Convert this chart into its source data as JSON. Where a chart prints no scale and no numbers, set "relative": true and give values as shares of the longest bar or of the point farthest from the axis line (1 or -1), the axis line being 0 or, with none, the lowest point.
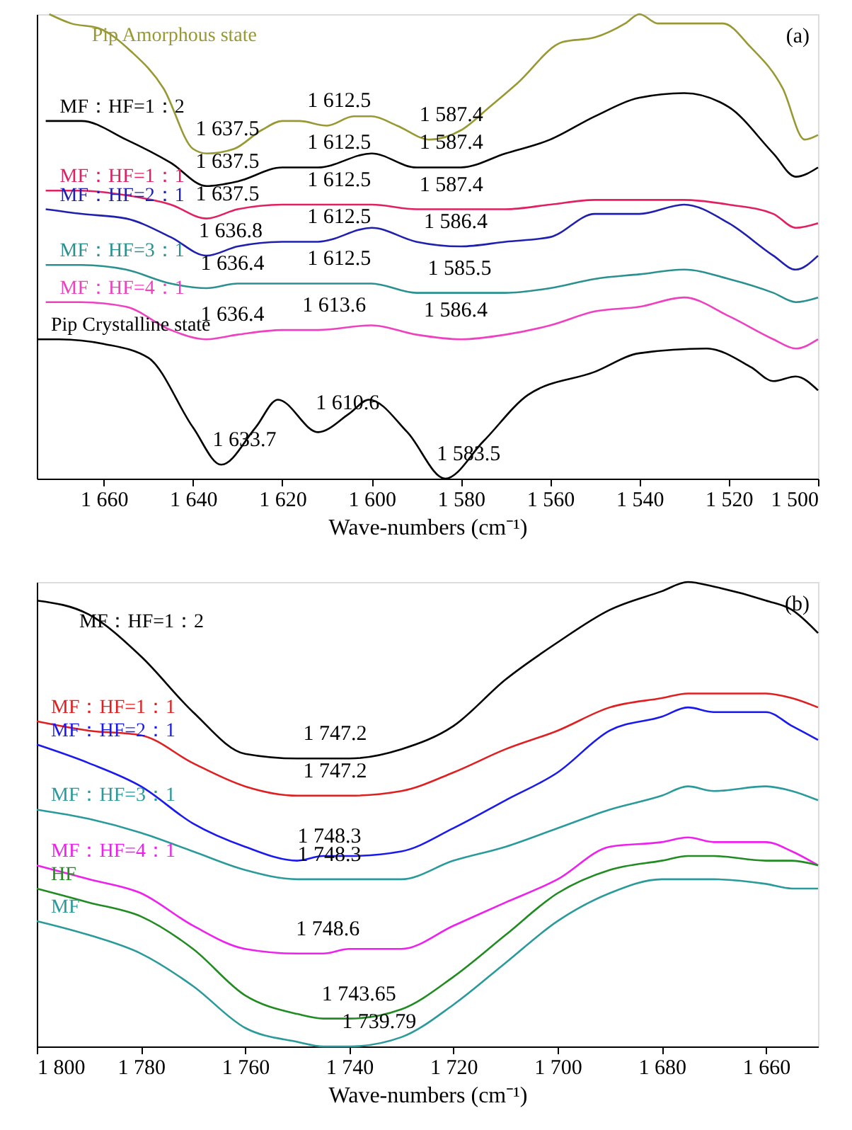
{
  "chart_data": [
    {
      "type": "line",
      "relative": true,
      "tick_labels": "x",
      "xlabel": "Wave-numbers (cm⁻¹)",
      "xlim": [
        1675,
        1500
      ],
      "xticks": [
        {
          "value": 1660,
          "label": "1 660"
        },
        {
          "value": 1640,
          "label": "1 640"
        },
        {
          "value": 1620,
          "label": "1 620"
        },
        {
          "value": 1600,
          "label": "1 600"
        },
        {
          "value": 1580,
          "label": "1 580"
        },
        {
          "value": 1560,
          "label": "1 560"
        },
        {
          "value": 1540,
          "label": "1 540"
        },
        {
          "value": 1520,
          "label": "1 520"
        },
        {
          "value": 1500,
          "label": "1 500"
        }
      ],
      "x": [
        1673,
        1665,
        1655,
        1645,
        1637,
        1630,
        1620,
        1612,
        1600,
        1590,
        1580,
        1570,
        1560,
        1550,
        1540,
        1530,
        1520,
        1510,
        1505,
        1500
      ],
      "series": [
        {
          "name": "Pip Amorphous state",
          "color": "#999933",
          "x": [
            1672.2,
            1667.3,
            1661.2,
            1653.9,
            1646.6,
            1640,
            1636.9,
            1630.8,
            1624.7,
            1620,
            1616.2,
            1610,
            1604,
            1600,
            1594.3,
            1587,
            1580,
            1573.6,
            1567.5,
            1557.2,
            1550,
            1543.2,
            1540,
            1535.9,
            1530,
            1521.3,
            1515.2,
            1507.9,
            1503,
            1500
          ],
          "values": [
            1.0,
            0.98,
            0.97,
            0.92,
            0.84,
            0.71,
            0.7,
            0.71,
            0.75,
            0.77,
            0.77,
            0.76,
            0.78,
            0.78,
            0.76,
            0.73,
            0.75,
            0.8,
            0.85,
            0.94,
            0.95,
            0.98,
            1.0,
            0.98,
            0.98,
            0.98,
            0.93,
            0.84,
            0.73,
            0.74
          ]
        },
        {
          "name": "MF：HF=1：2",
          "color": "#000000",
          "values": [
            0.77,
            0.77,
            0.73,
            0.68,
            0.63,
            0.64,
            0.67,
            0.67,
            0.7,
            0.67,
            0.67,
            0.7,
            0.73,
            0.78,
            0.82,
            0.83,
            0.8,
            0.7,
            0.65,
            0.67
          ]
        },
        {
          "name": "MF：HF=1：1",
          "color": "#e02060",
          "values": [
            0.62,
            0.62,
            0.61,
            0.59,
            0.56,
            0.58,
            0.59,
            0.59,
            0.59,
            0.58,
            0.58,
            0.58,
            0.59,
            0.6,
            0.6,
            0.6,
            0.59,
            0.57,
            0.54,
            0.55
          ]
        },
        {
          "name": "MF：HF=2：1",
          "color": "#2020b0",
          "values": [
            0.58,
            0.57,
            0.56,
            0.52,
            0.48,
            0.5,
            0.51,
            0.51,
            0.54,
            0.51,
            0.5,
            0.51,
            0.52,
            0.57,
            0.57,
            0.59,
            0.55,
            0.48,
            0.45,
            0.48
          ]
        },
        {
          "name": "MF：HF=3：1",
          "color": "#2a9090",
          "values": [
            0.46,
            0.46,
            0.45,
            0.42,
            0.41,
            0.42,
            0.42,
            0.42,
            0.42,
            0.4,
            0.4,
            0.4,
            0.41,
            0.43,
            0.44,
            0.45,
            0.43,
            0.4,
            0.38,
            0.39
          ]
        },
        {
          "name": "MF：HF=4：1",
          "color": "#ee40c0",
          "values": [
            0.38,
            0.38,
            0.37,
            0.32,
            0.3,
            0.31,
            0.32,
            0.32,
            0.33,
            0.31,
            0.3,
            0.31,
            0.33,
            0.36,
            0.37,
            0.39,
            0.35,
            0.3,
            0.28,
            0.3
          ]
        },
        {
          "name": "Pip Crystalline state",
          "color": "#000000",
          "x": [
            1675,
            1670,
            1660,
            1650,
            1640,
            1633.7,
            1626,
            1621,
            1612,
            1605,
            1600.6,
            1592,
            1583.5,
            1575,
            1565,
            1550,
            1540,
            1525,
            1515,
            1510,
            1505,
            1500
          ],
          "values": [
            0.3,
            0.3,
            0.29,
            0.26,
            0.11,
            0.03,
            0.11,
            0.17,
            0.1,
            0.14,
            0.17,
            0.1,
            0.0,
            0.08,
            0.18,
            0.23,
            0.27,
            0.28,
            0.24,
            0.21,
            0.22,
            0.19
          ]
        }
      ],
      "annotations": [
        "(a)",
        {
          "text": "1 637.5",
          "x": 1637.5,
          "y": 0.7
        },
        {
          "text": "1 612.5",
          "x": 1612.5,
          "y": 0.76
        },
        {
          "text": "1 587.4",
          "x": 1587.4,
          "y": 0.73
        },
        {
          "text": "1 637.5",
          "x": 1637.5,
          "y": 0.63
        },
        {
          "text": "1 612.5",
          "x": 1612.5,
          "y": 0.67
        },
        {
          "text": "1 587.4",
          "x": 1587.4,
          "y": 0.67
        },
        {
          "text": "1 637.5",
          "x": 1637.5,
          "y": 0.56
        },
        {
          "text": "1 612.5",
          "x": 1612.5,
          "y": 0.59
        },
        {
          "text": "1 587.4",
          "x": 1587.4,
          "y": 0.58
        },
        {
          "text": "1 636.8",
          "x": 1636.8,
          "y": 0.48
        },
        {
          "text": "1 612.5",
          "x": 1612.5,
          "y": 0.51
        },
        {
          "text": "1 586.4",
          "x": 1586.4,
          "y": 0.5
        },
        {
          "text": "1 636.4",
          "x": 1636.4,
          "y": 0.41
        },
        {
          "text": "1 612.5",
          "x": 1612.5,
          "y": 0.42
        },
        {
          "text": "1 585.5",
          "x": 1585.5,
          "y": 0.4
        },
        {
          "text": "1 636.4",
          "x": 1636.4,
          "y": 0.3
        },
        {
          "text": "1 613.6",
          "x": 1613.6,
          "y": 0.32
        },
        {
          "text": "1 586.4",
          "x": 1586.4,
          "y": 0.31
        },
        {
          "text": "1 633.7",
          "x": 1633.7,
          "y": 0.03
        },
        {
          "text": "1 610.6",
          "x": 1610.6,
          "y": 0.11
        },
        {
          "text": "1 583.5",
          "x": 1583.5,
          "y": 0.0
        }
      ]
    },
    {
      "type": "line",
      "relative": true,
      "tick_labels": "x",
      "xlabel": "Wave-numbers (cm⁻¹)",
      "xlim": [
        1800,
        1650
      ],
      "xticks": [
        {
          "value": 1800,
          "label": "1 800"
        },
        {
          "value": 1780,
          "label": "1 780"
        },
        {
          "value": 1760,
          "label": "1 760"
        },
        {
          "value": 1740,
          "label": "1 740"
        },
        {
          "value": 1720,
          "label": "1 720"
        },
        {
          "value": 1700,
          "label": "1 700"
        },
        {
          "value": 1680,
          "label": "1 680"
        },
        {
          "value": 1660,
          "label": "1 660"
        }
      ],
      "x": [
        1800,
        1790,
        1780,
        1770,
        1760,
        1750,
        1745,
        1740,
        1730,
        1720,
        1710,
        1700,
        1690,
        1680,
        1675,
        1670,
        1660,
        1655,
        1650
      ],
      "series": [
        {
          "name": "MF：HF=1：2",
          "color": "#000000",
          "values": [
            0.96,
            0.93,
            0.84,
            0.72,
            0.63,
            0.62,
            0.62,
            0.62,
            0.64,
            0.69,
            0.79,
            0.87,
            0.94,
            0.98,
            1.0,
            0.99,
            0.96,
            0.94,
            0.89
          ]
        },
        {
          "name": "MF：HF=1：1",
          "color": "#e02020",
          "values": [
            0.7,
            0.68,
            0.67,
            0.61,
            0.56,
            0.54,
            0.54,
            0.54,
            0.55,
            0.59,
            0.64,
            0.68,
            0.73,
            0.75,
            0.76,
            0.76,
            0.76,
            0.75,
            0.73
          ]
        },
        {
          "name": "MF：HF=2：1",
          "color": "#1a1aee",
          "values": [
            0.65,
            0.61,
            0.56,
            0.48,
            0.43,
            0.4,
            0.41,
            0.41,
            0.42,
            0.47,
            0.53,
            0.59,
            0.68,
            0.71,
            0.73,
            0.72,
            0.72,
            0.69,
            0.66
          ]
        },
        {
          "name": "MF：HF=3：1",
          "color": "#2a9a9a",
          "values": [
            0.51,
            0.49,
            0.46,
            0.42,
            0.38,
            0.36,
            0.36,
            0.36,
            0.36,
            0.4,
            0.43,
            0.47,
            0.51,
            0.54,
            0.56,
            0.55,
            0.56,
            0.55,
            0.53
          ]
        },
        {
          "name": "MF：HF=4：1",
          "color": "#ee20ee",
          "values": [
            0.39,
            0.36,
            0.33,
            0.26,
            0.21,
            0.2,
            0.2,
            0.21,
            0.21,
            0.26,
            0.31,
            0.36,
            0.43,
            0.44,
            0.45,
            0.44,
            0.44,
            0.42,
            0.39
          ]
        },
        {
          "name": "HF",
          "color": "#228b22",
          "values": [
            0.34,
            0.31,
            0.28,
            0.21,
            0.11,
            0.07,
            0.06,
            0.06,
            0.08,
            0.15,
            0.24,
            0.33,
            0.38,
            0.4,
            0.41,
            0.41,
            0.4,
            0.4,
            0.39
          ]
        },
        {
          "name": "MF",
          "color": "#2a9a9a",
          "values": [
            0.27,
            0.24,
            0.2,
            0.13,
            0.04,
            0.01,
            0.0,
            0.0,
            0.02,
            0.09,
            0.18,
            0.27,
            0.33,
            0.36,
            0.36,
            0.36,
            0.35,
            0.34,
            0.34
          ]
        }
      ],
      "annotations": [
        "(b)",
        {
          "text": "1 747.2",
          "x": 1747.2,
          "y": 0.62
        },
        {
          "text": "1 747.2",
          "x": 1747.2,
          "y": 0.54
        },
        {
          "text": "1 748.3",
          "x": 1748.3,
          "y": 0.4
        },
        {
          "text": "1 748.3",
          "x": 1748.3,
          "y": 0.36
        },
        {
          "text": "1 748.6",
          "x": 1748.6,
          "y": 0.2
        },
        {
          "text": "1 743.65",
          "x": 1743.65,
          "y": 0.06
        },
        {
          "text": "1 739.79",
          "x": 1739.79,
          "y": 0.0
        }
      ]
    }
  ]
}
